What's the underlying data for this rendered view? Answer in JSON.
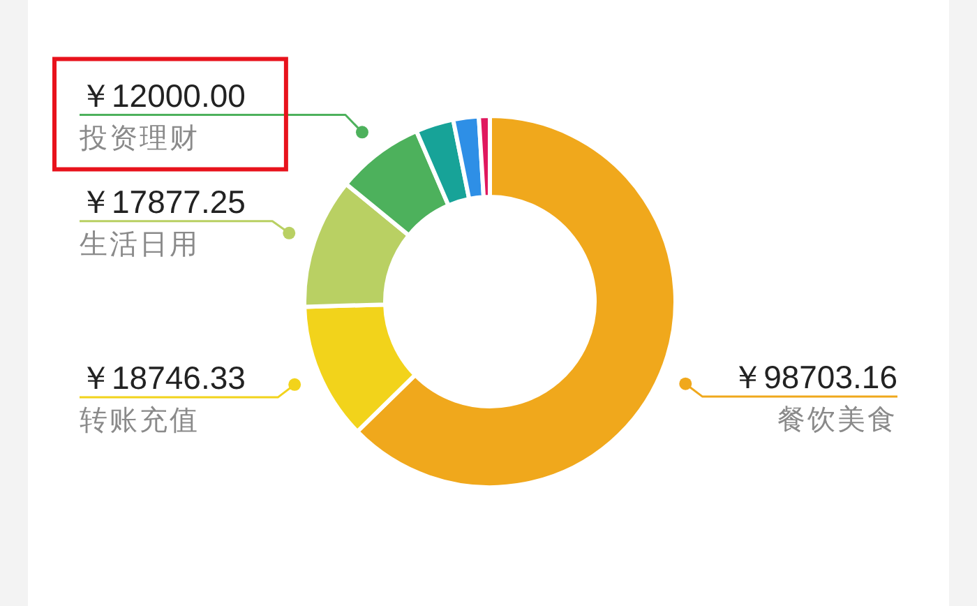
{
  "chart_data": {
    "type": "donut",
    "categories": [
      "餐饮美食",
      "转账充值",
      "生活日用",
      "投资理财",
      null,
      null,
      null
    ],
    "values": [
      98703.16,
      18746.33,
      17877.25,
      12000.0,
      5200,
      3500,
      1500
    ],
    "colors": [
      "#f0a81c",
      "#f2d31b",
      "#b9d063",
      "#4db15c",
      "#17a398",
      "#2e8fe6",
      "#e0185e"
    ],
    "value_labels": [
      "￥98703.16",
      "￥18746.33",
      "￥17877.25",
      "￥12000.00",
      null,
      null,
      null
    ]
  }
}
